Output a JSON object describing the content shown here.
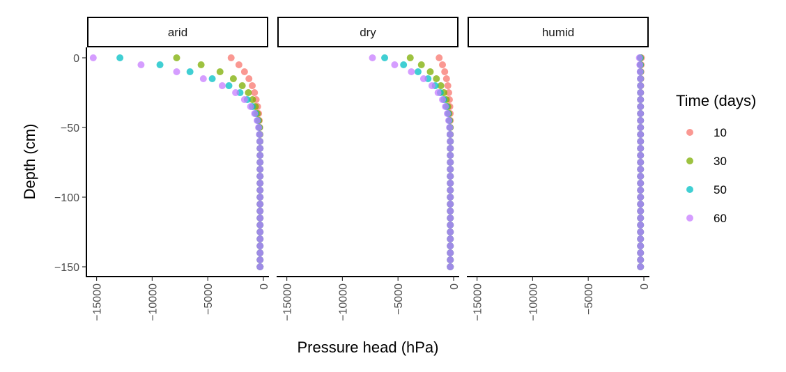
{
  "chart_data": {
    "type": "scatter",
    "xlabel": "Pressure head (hPa)",
    "ylabel": "Depth (cm)",
    "xlim": [
      -16500,
      700
    ],
    "ylim": [
      -155,
      7
    ],
    "x_ticks": [
      -15000,
      -10000,
      -5000,
      0
    ],
    "y_ticks": [
      0,
      -50,
      -100,
      -150
    ],
    "legend": {
      "title": "Time (days)",
      "position": "right"
    },
    "grid": false,
    "panels": [
      {
        "label": "arid",
        "series": [
          {
            "name": "10",
            "color": "#F8766D",
            "x": [
              -2900,
              -2200,
              -1700,
              -1300,
              -1000,
              -800,
              -650,
              -520,
              -430,
              -370,
              -330,
              -310,
              -300,
              -300,
              -300,
              -300,
              -300,
              -300,
              -300,
              -300,
              -300,
              -300,
              -300,
              -300,
              -300,
              -300,
              -300,
              -300,
              -300,
              -300,
              -300
            ],
            "y": [
              0,
              -5,
              -10,
              -15,
              -20,
              -25,
              -30,
              -35,
              -40,
              -45,
              -50,
              -55,
              -60,
              -65,
              -70,
              -75,
              -80,
              -85,
              -90,
              -95,
              -100,
              -105,
              -110,
              -115,
              -120,
              -125,
              -130,
              -135,
              -140,
              -145,
              -150
            ]
          },
          {
            "name": "30",
            "color": "#7CAE00",
            "x": [
              -7800,
              -5600,
              -3900,
              -2700,
              -1900,
              -1350,
              -980,
              -720,
              -540,
              -420,
              -350,
              -320,
              -310,
              -300,
              -300,
              -300,
              -300,
              -300,
              -300,
              -300,
              -300,
              -300,
              -300,
              -300,
              -300,
              -300,
              -300,
              -300,
              -300,
              -300,
              -300
            ],
            "y": [
              0,
              -5,
              -10,
              -15,
              -20,
              -25,
              -30,
              -35,
              -40,
              -45,
              -50,
              -55,
              -60,
              -65,
              -70,
              -75,
              -80,
              -85,
              -90,
              -95,
              -100,
              -105,
              -110,
              -115,
              -120,
              -125,
              -130,
              -135,
              -140,
              -145,
              -150
            ]
          },
          {
            "name": "50",
            "color": "#00BFC4",
            "x": [
              -12900,
              -9300,
              -6600,
              -4600,
              -3100,
              -2100,
              -1450,
              -1000,
              -700,
              -510,
              -400,
              -340,
              -310,
              -300,
              -300,
              -300,
              -300,
              -300,
              -300,
              -300,
              -300,
              -300,
              -300,
              -300,
              -300,
              -300,
              -300,
              -300,
              -300,
              -300,
              -300
            ],
            "y": [
              0,
              -5,
              -10,
              -15,
              -20,
              -25,
              -30,
              -35,
              -40,
              -45,
              -50,
              -55,
              -60,
              -65,
              -70,
              -75,
              -80,
              -85,
              -90,
              -95,
              -100,
              -105,
              -110,
              -115,
              -120,
              -125,
              -130,
              -135,
              -140,
              -145,
              -150
            ]
          },
          {
            "name": "60",
            "color": "#C77CFF",
            "x": [
              -15300,
              -11000,
              -7800,
              -5400,
              -3700,
              -2500,
              -1700,
              -1150,
              -790,
              -560,
              -430,
              -350,
              -315,
              -300,
              -300,
              -300,
              -300,
              -300,
              -300,
              -300,
              -300,
              -300,
              -300,
              -300,
              -300,
              -300,
              -300,
              -300,
              -300,
              -300,
              -300
            ],
            "y": [
              0,
              -5,
              -10,
              -15,
              -20,
              -25,
              -30,
              -35,
              -40,
              -45,
              -50,
              -55,
              -60,
              -65,
              -70,
              -75,
              -80,
              -85,
              -90,
              -95,
              -100,
              -105,
              -110,
              -115,
              -120,
              -125,
              -130,
              -135,
              -140,
              -145,
              -150
            ]
          }
        ]
      },
      {
        "label": "dry",
        "series": [
          {
            "name": "10",
            "color": "#F8766D",
            "x": [
              -1300,
              -1000,
              -800,
              -640,
              -520,
              -440,
              -380,
              -340,
              -310,
              -300,
              -300,
              -300,
              -300,
              -300,
              -300,
              -300,
              -300,
              -300,
              -300,
              -300,
              -300,
              -300,
              -300,
              -300,
              -300,
              -300,
              -300,
              -300,
              -300,
              -300,
              -300
            ],
            "y": [
              0,
              -5,
              -10,
              -15,
              -20,
              -25,
              -30,
              -35,
              -40,
              -45,
              -50,
              -55,
              -60,
              -65,
              -70,
              -75,
              -80,
              -85,
              -90,
              -95,
              -100,
              -105,
              -110,
              -115,
              -120,
              -125,
              -130,
              -135,
              -140,
              -145,
              -150
            ]
          },
          {
            "name": "30",
            "color": "#7CAE00",
            "x": [
              -3900,
              -2900,
              -2100,
              -1550,
              -1150,
              -870,
              -660,
              -520,
              -420,
              -360,
              -320,
              -310,
              -300,
              -300,
              -300,
              -300,
              -300,
              -300,
              -300,
              -300,
              -300,
              -300,
              -300,
              -300,
              -300,
              -300,
              -300,
              -300,
              -300,
              -300,
              -300
            ],
            "y": [
              0,
              -5,
              -10,
              -15,
              -20,
              -25,
              -30,
              -35,
              -40,
              -45,
              -50,
              -55,
              -60,
              -65,
              -70,
              -75,
              -80,
              -85,
              -90,
              -95,
              -100,
              -105,
              -110,
              -115,
              -120,
              -125,
              -130,
              -135,
              -140,
              -145,
              -150
            ]
          },
          {
            "name": "50",
            "color": "#00BFC4",
            "x": [
              -6200,
              -4500,
              -3200,
              -2300,
              -1650,
              -1200,
              -880,
              -650,
              -500,
              -400,
              -340,
              -315,
              -300,
              -300,
              -300,
              -300,
              -300,
              -300,
              -300,
              -300,
              -300,
              -300,
              -300,
              -300,
              -300,
              -300,
              -300,
              -300,
              -300,
              -300,
              -300
            ],
            "y": [
              0,
              -5,
              -10,
              -15,
              -20,
              -25,
              -30,
              -35,
              -40,
              -45,
              -50,
              -55,
              -60,
              -65,
              -70,
              -75,
              -80,
              -85,
              -90,
              -95,
              -100,
              -105,
              -110,
              -115,
              -120,
              -125,
              -130,
              -135,
              -140,
              -145,
              -150
            ]
          },
          {
            "name": "60",
            "color": "#C77CFF",
            "x": [
              -7300,
              -5300,
              -3800,
              -2700,
              -1950,
              -1400,
              -1000,
              -740,
              -560,
              -440,
              -360,
              -320,
              -305,
              -300,
              -300,
              -300,
              -300,
              -300,
              -300,
              -300,
              -300,
              -300,
              -300,
              -300,
              -300,
              -300,
              -300,
              -300,
              -300,
              -300,
              -300
            ],
            "y": [
              0,
              -5,
              -10,
              -15,
              -20,
              -25,
              -30,
              -35,
              -40,
              -45,
              -50,
              -55,
              -60,
              -65,
              -70,
              -75,
              -80,
              -85,
              -90,
              -95,
              -100,
              -105,
              -110,
              -115,
              -120,
              -125,
              -130,
              -135,
              -140,
              -145,
              -150
            ]
          }
        ]
      },
      {
        "label": "humid",
        "series": [
          {
            "name": "10",
            "color": "#F8766D",
            "x": [
              -220,
              -240,
              -260,
              -270,
              -280,
              -290,
              -300,
              -300,
              -300,
              -300,
              -300,
              -300,
              -300,
              -300,
              -300,
              -300,
              -300,
              -300,
              -300,
              -300,
              -300,
              -300,
              -300,
              -300,
              -300,
              -300,
              -300,
              -300,
              -300,
              -300,
              -300
            ],
            "y": [
              0,
              -5,
              -10,
              -15,
              -20,
              -25,
              -30,
              -35,
              -40,
              -45,
              -50,
              -55,
              -60,
              -65,
              -70,
              -75,
              -80,
              -85,
              -90,
              -95,
              -100,
              -105,
              -110,
              -115,
              -120,
              -125,
              -130,
              -135,
              -140,
              -145,
              -150
            ]
          },
          {
            "name": "30",
            "color": "#7CAE00",
            "x": [
              -300,
              -300,
              -300,
              -300,
              -300,
              -300,
              -300,
              -300,
              -300,
              -300,
              -300,
              -300,
              -300,
              -300,
              -300,
              -300,
              -300,
              -300,
              -300,
              -300,
              -300,
              -300,
              -300,
              -300,
              -300,
              -300,
              -300,
              -300,
              -300,
              -300,
              -300
            ],
            "y": [
              0,
              -5,
              -10,
              -15,
              -20,
              -25,
              -30,
              -35,
              -40,
              -45,
              -50,
              -55,
              -60,
              -65,
              -70,
              -75,
              -80,
              -85,
              -90,
              -95,
              -100,
              -105,
              -110,
              -115,
              -120,
              -125,
              -130,
              -135,
              -140,
              -145,
              -150
            ]
          },
          {
            "name": "50",
            "color": "#00BFC4",
            "x": [
              -330,
              -320,
              -310,
              -300,
              -300,
              -300,
              -300,
              -300,
              -300,
              -300,
              -300,
              -300,
              -300,
              -300,
              -300,
              -300,
              -300,
              -300,
              -300,
              -300,
              -300,
              -300,
              -300,
              -300,
              -300,
              -300,
              -300,
              -300,
              -300,
              -300,
              -300
            ],
            "y": [
              0,
              -5,
              -10,
              -15,
              -20,
              -25,
              -30,
              -35,
              -40,
              -45,
              -50,
              -55,
              -60,
              -65,
              -70,
              -75,
              -80,
              -85,
              -90,
              -95,
              -100,
              -105,
              -110,
              -115,
              -120,
              -125,
              -130,
              -135,
              -140,
              -145,
              -150
            ]
          },
          {
            "name": "60",
            "color": "#C77CFF",
            "x": [
              -400,
              -360,
              -330,
              -310,
              -300,
              -300,
              -300,
              -300,
              -300,
              -300,
              -300,
              -300,
              -300,
              -300,
              -300,
              -300,
              -300,
              -300,
              -300,
              -300,
              -300,
              -300,
              -300,
              -300,
              -300,
              -300,
              -300,
              -300,
              -300,
              -300,
              -300
            ],
            "y": [
              0,
              -5,
              -10,
              -15,
              -20,
              -25,
              -30,
              -35,
              -40,
              -45,
              -50,
              -55,
              -60,
              -65,
              -70,
              -75,
              -80,
              -85,
              -90,
              -95,
              -100,
              -105,
              -110,
              -115,
              -120,
              -125,
              -130,
              -135,
              -140,
              -145,
              -150
            ]
          }
        ]
      }
    ]
  }
}
